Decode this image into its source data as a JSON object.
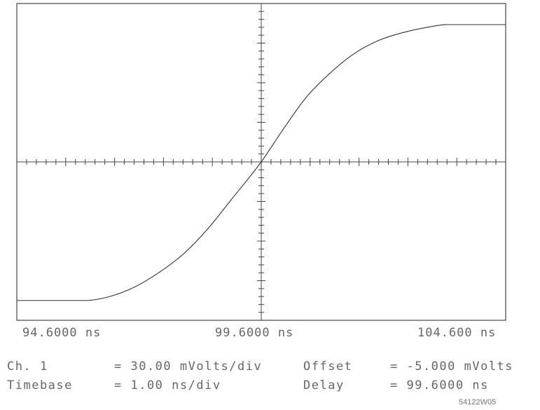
{
  "chart_data": {
    "type": "line",
    "title": "",
    "xlabel": "",
    "ylabel": "",
    "xlim": [
      94.6,
      104.6
    ],
    "ylim": [
      -125,
      115
    ],
    "x_unit": "ns",
    "y_unit": "mV",
    "grid": false,
    "divisions": {
      "x": 10,
      "y": 8
    },
    "minor_ticks_per_division": 5,
    "tick_labels": [
      "94.6000 ns",
      "99.6000 ns",
      "104.600 ns"
    ],
    "series": [
      {
        "name": "",
        "color": "#333333",
        "x": [
          94.6,
          96.0,
          96.5,
          97.0,
          97.5,
          98.0,
          98.5,
          99.0,
          99.6,
          100.0,
          100.5,
          101.0,
          101.5,
          102.0,
          102.5,
          103.0,
          103.4,
          104.6
        ],
        "y": [
          -110,
          -110,
          -107,
          -100,
          -89,
          -75,
          -56,
          -33,
          -5,
          17,
          43,
          62,
          77,
          87,
          93,
          97,
          99,
          99
        ]
      }
    ]
  },
  "readout": {
    "ch_label": "Ch. 1",
    "ch_value": "= 30.00 mVolts/div",
    "offset_label": "Offset",
    "offset_value": "= -5.000 mVolts",
    "timebase_label": "Timebase",
    "timebase_value": "= 1.00 ns/div",
    "delay_label": "Delay",
    "delay_value": "= 99.6000 ns"
  },
  "figure_id": "54122W05"
}
